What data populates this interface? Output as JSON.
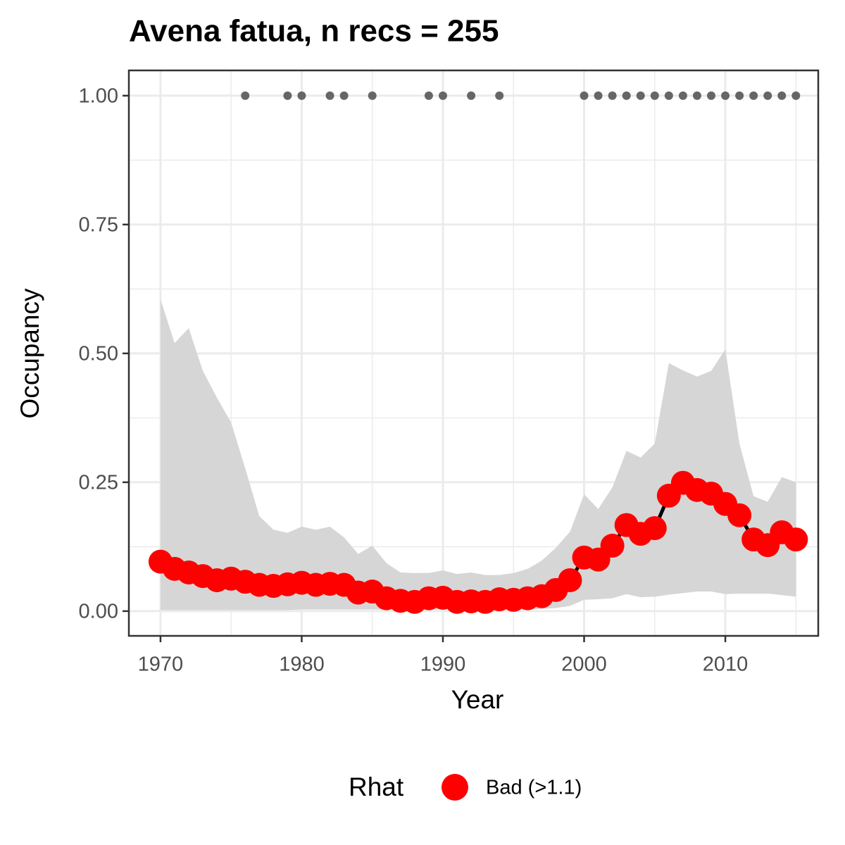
{
  "chart_data": {
    "type": "line",
    "title": "Avena fatua, n recs = 255",
    "xlabel": "Year",
    "ylabel": "Occupancy",
    "x": [
      1970,
      1971,
      1972,
      1973,
      1974,
      1975,
      1976,
      1977,
      1978,
      1979,
      1980,
      1981,
      1982,
      1983,
      1984,
      1985,
      1986,
      1987,
      1988,
      1989,
      1990,
      1991,
      1992,
      1993,
      1994,
      1995,
      1996,
      1997,
      1998,
      1999,
      2000,
      2001,
      2002,
      2003,
      2004,
      2005,
      2006,
      2007,
      2008,
      2009,
      2010,
      2011,
      2012,
      2013,
      2014,
      2015
    ],
    "series": [
      {
        "name": "Bad (>1.1)",
        "color": "#ff0000",
        "line_color": "#000000",
        "band_color": "#d6d6d6",
        "values": [
          0.096,
          0.082,
          0.075,
          0.068,
          0.06,
          0.063,
          0.057,
          0.051,
          0.049,
          0.052,
          0.055,
          0.051,
          0.053,
          0.051,
          0.036,
          0.038,
          0.025,
          0.02,
          0.018,
          0.025,
          0.026,
          0.018,
          0.019,
          0.018,
          0.023,
          0.022,
          0.025,
          0.029,
          0.041,
          0.06,
          0.104,
          0.1,
          0.127,
          0.167,
          0.15,
          0.161,
          0.224,
          0.249,
          0.235,
          0.228,
          0.208,
          0.186,
          0.139,
          0.128,
          0.153,
          0.139
        ],
        "upper": [
          0.605,
          0.52,
          0.549,
          0.466,
          0.414,
          0.366,
          0.277,
          0.184,
          0.158,
          0.152,
          0.164,
          0.158,
          0.164,
          0.143,
          0.111,
          0.127,
          0.093,
          0.075,
          0.074,
          0.074,
          0.079,
          0.072,
          0.075,
          0.07,
          0.07,
          0.074,
          0.082,
          0.098,
          0.123,
          0.154,
          0.227,
          0.198,
          0.24,
          0.311,
          0.298,
          0.325,
          0.481,
          0.467,
          0.455,
          0.466,
          0.508,
          0.325,
          0.223,
          0.212,
          0.26,
          0.25
        ],
        "lower": [
          0.002,
          0.002,
          0.002,
          0.002,
          0.002,
          0.002,
          0.002,
          0.002,
          0.002,
          0.002,
          0.003,
          0.003,
          0.003,
          0.003,
          0.003,
          0.003,
          0.003,
          0.003,
          0.003,
          0.003,
          0.003,
          0.003,
          0.003,
          0.003,
          0.003,
          0.003,
          0.003,
          0.004,
          0.006,
          0.01,
          0.022,
          0.023,
          0.025,
          0.033,
          0.027,
          0.028,
          0.032,
          0.035,
          0.038,
          0.038,
          0.033,
          0.034,
          0.034,
          0.034,
          0.031,
          0.028
        ]
      }
    ],
    "detections": {
      "color": "#666666",
      "x": [
        1976,
        1979,
        1980,
        1982,
        1983,
        1985,
        1989,
        1990,
        1992,
        1994,
        2000,
        2001,
        2002,
        2003,
        2004,
        2005,
        2006,
        2007,
        2008,
        2009,
        2010,
        2011,
        2012,
        2013,
        2014,
        2015
      ],
      "values": [
        1,
        1,
        1,
        1,
        1,
        1,
        1,
        1,
        1,
        1,
        1,
        1,
        1,
        1,
        1,
        1,
        1,
        1,
        1,
        1,
        1,
        1,
        1,
        1,
        1,
        1
      ]
    },
    "legend_title": "Rhat",
    "legend": "bottom",
    "xlim": [
      1967.76,
      2016.58
    ],
    "ylim": [
      -0.048,
      1.049
    ],
    "xticks": [
      1970,
      1980,
      1990,
      2000,
      2010
    ],
    "xminor_ticks": [
      1975,
      1985,
      1995,
      2005,
      2015
    ],
    "yticks": [
      {
        "value": 0,
        "label": "0.00"
      },
      {
        "value": 0.25,
        "label": "0.25"
      },
      {
        "value": 0.5,
        "label": "0.50"
      },
      {
        "value": 0.75,
        "label": "0.75"
      },
      {
        "value": 1,
        "label": "1.00"
      }
    ],
    "yminor_ticks": [
      0.125,
      0.375,
      0.625,
      0.875
    ],
    "grid": true
  }
}
